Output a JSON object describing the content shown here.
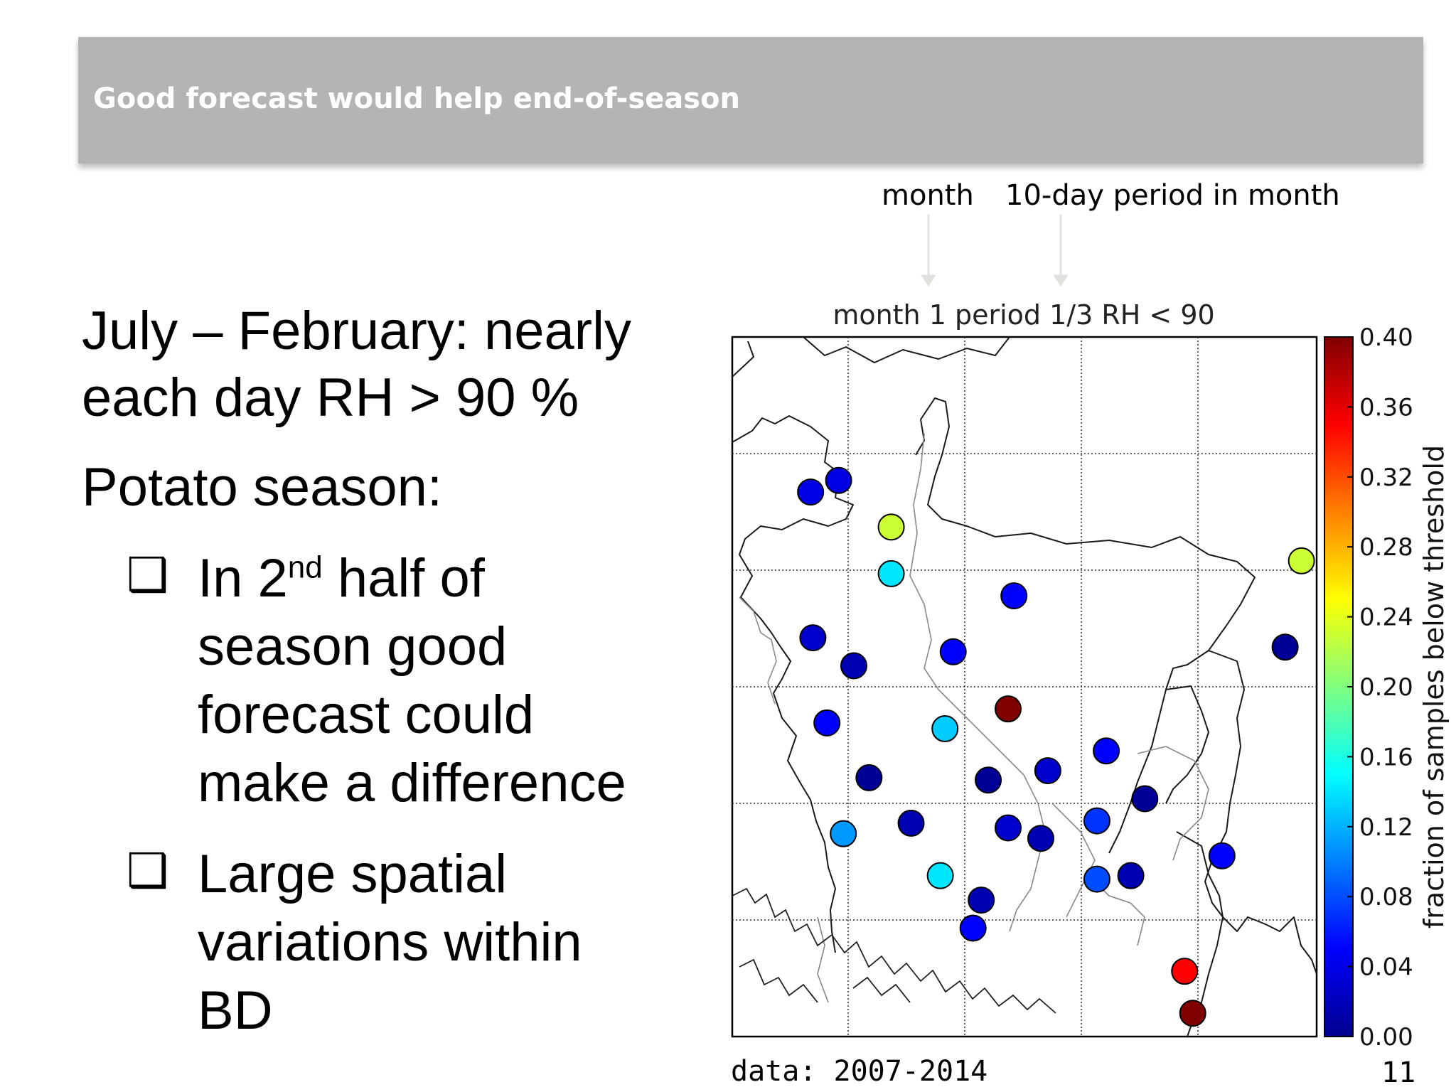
{
  "slide": {
    "title": "Good forecast would help end-of-season",
    "page_number": "11",
    "data_note": "data: 2007-2014",
    "annotations": {
      "month_label": "month",
      "period_label": "10-day period in month"
    },
    "text": {
      "line1": "July – February: nearly",
      "line2": "each day RH > 90 %",
      "line3": "Potato season:",
      "bullets": [
        {
          "lines": [
            "half of",
            "season good",
            "forecast could",
            "make a difference"
          ],
          "prefix": "In 2",
          "sup": "nd"
        },
        {
          "lines": [
            "Large spatial",
            "variations within",
            "BD"
          ]
        }
      ]
    }
  },
  "chart_data": {
    "type": "scatter",
    "title": "month 1 period 1/3 RH < 90",
    "colorbar": {
      "label": "fraction of samples below threshold",
      "range": [
        0.0,
        0.4
      ],
      "ticks": [
        "0.40",
        "0.36",
        "0.32",
        "0.28",
        "0.24",
        "0.20",
        "0.16",
        "0.12",
        "0.08",
        "0.04",
        "0.00"
      ],
      "tick_values": [
        0.4,
        0.36,
        0.32,
        0.28,
        0.24,
        0.2,
        0.16,
        0.12,
        0.08,
        0.04,
        0.0
      ]
    },
    "grid": true,
    "map_extent": {
      "lon": [
        88.0,
        93.0
      ],
      "lat": [
        20.5,
        26.5
      ]
    },
    "points": [
      {
        "lon": 88.67,
        "lat": 25.17,
        "value": 0.04
      },
      {
        "lon": 88.91,
        "lat": 25.27,
        "value": 0.04
      },
      {
        "lon": 89.36,
        "lat": 24.87,
        "value": 0.23
      },
      {
        "lon": 89.36,
        "lat": 24.47,
        "value": 0.14
      },
      {
        "lon": 90.41,
        "lat": 24.28,
        "value": 0.05
      },
      {
        "lon": 92.87,
        "lat": 24.58,
        "value": 0.23
      },
      {
        "lon": 88.69,
        "lat": 23.92,
        "value": 0.03
      },
      {
        "lon": 89.04,
        "lat": 23.68,
        "value": 0.02
      },
      {
        "lon": 89.89,
        "lat": 23.8,
        "value": 0.05
      },
      {
        "lon": 92.73,
        "lat": 23.84,
        "value": 0.01
      },
      {
        "lon": 88.81,
        "lat": 23.19,
        "value": 0.05
      },
      {
        "lon": 89.82,
        "lat": 23.14,
        "value": 0.13
      },
      {
        "lon": 90.36,
        "lat": 23.31,
        "value": 0.4
      },
      {
        "lon": 91.2,
        "lat": 22.95,
        "value": 0.05
      },
      {
        "lon": 90.7,
        "lat": 22.78,
        "value": 0.03
      },
      {
        "lon": 89.17,
        "lat": 22.72,
        "value": 0.01
      },
      {
        "lon": 90.19,
        "lat": 22.7,
        "value": 0.01
      },
      {
        "lon": 91.53,
        "lat": 22.54,
        "value": 0.01
      },
      {
        "lon": 91.12,
        "lat": 22.35,
        "value": 0.07
      },
      {
        "lon": 89.53,
        "lat": 22.33,
        "value": 0.02
      },
      {
        "lon": 90.36,
        "lat": 22.29,
        "value": 0.03
      },
      {
        "lon": 90.64,
        "lat": 22.2,
        "value": 0.02
      },
      {
        "lon": 88.95,
        "lat": 22.24,
        "value": 0.11
      },
      {
        "lon": 92.19,
        "lat": 22.05,
        "value": 0.05
      },
      {
        "lon": 89.78,
        "lat": 21.88,
        "value": 0.14
      },
      {
        "lon": 91.12,
        "lat": 21.85,
        "value": 0.08
      },
      {
        "lon": 91.41,
        "lat": 21.88,
        "value": 0.02
      },
      {
        "lon": 90.13,
        "lat": 21.67,
        "value": 0.02
      },
      {
        "lon": 90.06,
        "lat": 21.43,
        "value": 0.05
      },
      {
        "lon": 91.87,
        "lat": 21.06,
        "value": 0.35
      },
      {
        "lon": 91.94,
        "lat": 20.7,
        "value": 0.4
      }
    ]
  }
}
